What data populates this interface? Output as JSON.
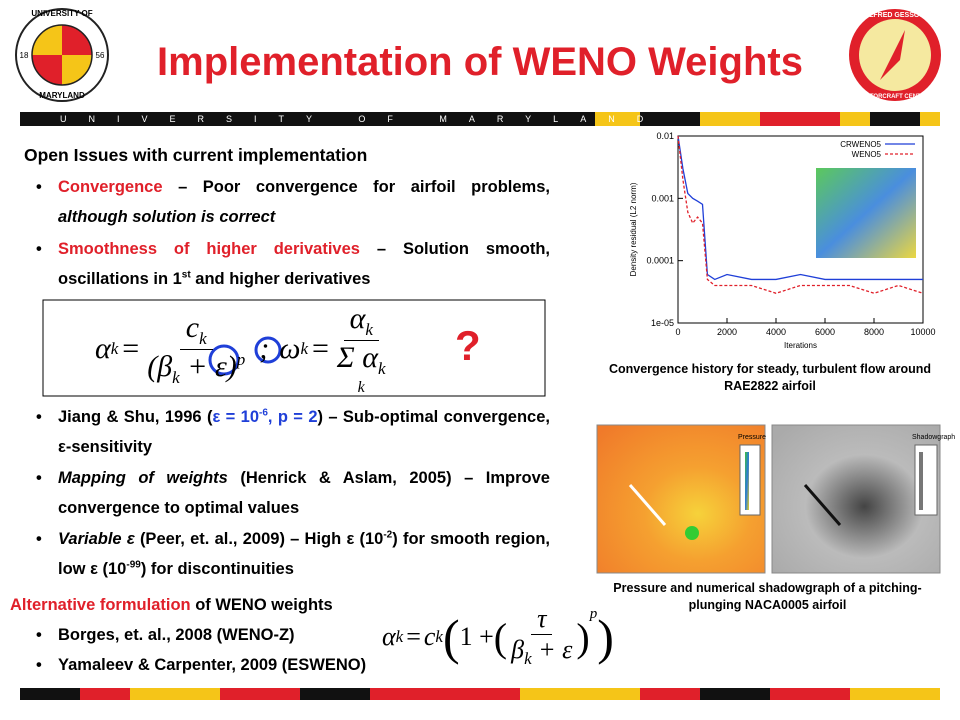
{
  "header": {
    "title": "Implementation of WENO Weights",
    "banner": "UNIVERSITY OF MARYLAND",
    "left_logo": {
      "top": "UNIVERSITY OF",
      "bottom": "MARYLAND",
      "year_left": "18",
      "year_right": "56"
    },
    "right_logo": {
      "top": "ALFRED GESSOW",
      "bottom": "ROTORCRAFT CENTER"
    }
  },
  "issues": {
    "heading": "Open Issues with current implementation",
    "bullets": [
      [
        {
          "text": "Convergence",
          "style": "red"
        },
        {
          "text": " – Poor convergence for airfoil problems, ",
          "style": "plain"
        },
        {
          "text": "although solution is correct",
          "style": "italic"
        }
      ],
      [
        {
          "text": "Smoothness of higher derivatives",
          "style": "red"
        },
        {
          "text": " – Solution smooth, oscillations in 1",
          "style": "plain"
        },
        {
          "text": "st",
          "style": "sup"
        },
        {
          "text": " and higher derivatives",
          "style": "plain"
        }
      ]
    ]
  },
  "formula_1": {
    "lhs": "α",
    "lhs_sub": "k",
    "eq": "=",
    "num": "c",
    "num_sub": "k",
    "den_open": "(β",
    "den_sub": "k",
    "den_rest": "+ ε)",
    "den_exp": "p",
    "sep": ";",
    "lhs2": "ω",
    "lhs2_sub": "k",
    "eq2": "=",
    "num2": "α",
    "num2_sub": "k",
    "den2": "Σ α",
    "den2_sub": "k",
    "sum_index": "k",
    "question": "?"
  },
  "references": {
    "bullets": [
      [
        {
          "text": "Jiang & Shu, 1996 (",
          "style": "plain"
        },
        {
          "text": "ε = 10",
          "style": "blue"
        },
        {
          "text": "-6",
          "style": "blue-sup"
        },
        {
          "text": ", p = 2",
          "style": "blue"
        },
        {
          "text": ") – Sub-optimal convergence, ε-sensitivity",
          "style": "plain"
        }
      ],
      [
        {
          "text": "Mapping of weights",
          "style": "italic"
        },
        {
          "text": " (Henrick & Aslam, 2005) – Improve convergence to optimal values",
          "style": "plain"
        }
      ],
      [
        {
          "text": "Variable ε",
          "style": "italic"
        },
        {
          "text": " (Peer, et. al., 2009) – High ε (10",
          "style": "plain"
        },
        {
          "text": "-2",
          "style": "sup"
        },
        {
          "text": ") for smooth region, low ε (10",
          "style": "plain"
        },
        {
          "text": "-99",
          "style": "sup"
        },
        {
          "text": ") for discontinuities",
          "style": "plain"
        }
      ]
    ]
  },
  "alternative": {
    "heading": [
      {
        "text": "Alternative formulation",
        "style": "red"
      },
      {
        "text": " of WENO weights",
        "style": "plain"
      }
    ],
    "bullets": [
      [
        {
          "text": "Borges, et. al., 2008 (WENO-Z)",
          "style": "plain"
        }
      ],
      [
        {
          "text": "Yamaleev & Carpenter, 2009 (ESWENO)",
          "style": "plain"
        }
      ]
    ]
  },
  "formula_2": {
    "lhs": "α",
    "lhs_sub": "k",
    "eq": "=",
    "c": "c",
    "c_sub": "k",
    "open": "(",
    "one": "1 +",
    "inner_open": "(",
    "num": "τ",
    "den": "β",
    "den_sub": "k",
    "den_rest": "+ ε",
    "inner_close": ")",
    "exp": "p",
    "close": ")"
  },
  "chart_data": {
    "type": "line",
    "ylabel": "Density residual (L2 norm)",
    "xlabel": "Iterations",
    "log_y": true,
    "legend": "upper right",
    "x": [
      0,
      200,
      400,
      600,
      800,
      1000,
      1200,
      1500,
      2000,
      3000,
      4000,
      5000,
      6000,
      7000,
      8000,
      9000,
      10000
    ],
    "series": [
      {
        "name": "CRWENO5",
        "color": "#1f3fd8",
        "dash": false,
        "values": [
          0.01,
          0.003,
          0.0012,
          0.001,
          0.0009,
          0.0008,
          6e-05,
          5e-05,
          6e-05,
          5e-05,
          5e-05,
          6e-05,
          5e-05,
          5e-05,
          5e-05,
          5e-05,
          5e-05
        ]
      },
      {
        "name": "WENO5",
        "color": "#e0202a",
        "dash": true,
        "values": [
          0.01,
          0.002,
          0.0006,
          0.0004,
          0.0005,
          0.0004,
          5e-05,
          4e-05,
          4e-05,
          4e-05,
          3e-05,
          4e-05,
          4e-05,
          4e-05,
          3e-05,
          4e-05,
          3e-05
        ]
      }
    ],
    "xlim": [
      0,
      10000
    ],
    "xticks": [
      0,
      2000,
      4000,
      6000,
      8000,
      10000
    ],
    "ylim": [
      1e-05,
      0.01
    ],
    "yticks": [
      {
        "value": 1e-05,
        "label": "1e-05"
      },
      0.0001,
      0.001,
      0.01
    ]
  },
  "captions": {
    "convergence": "Convergence history for steady, turbulent flow around RAE2822 airfoil",
    "pressure": "Pressure and numerical shadowgraph of a pitching-plunging NACA0005 airfoil"
  },
  "panels": {
    "left_legend": "Pressure",
    "right_legend": "Shadowgraph"
  }
}
